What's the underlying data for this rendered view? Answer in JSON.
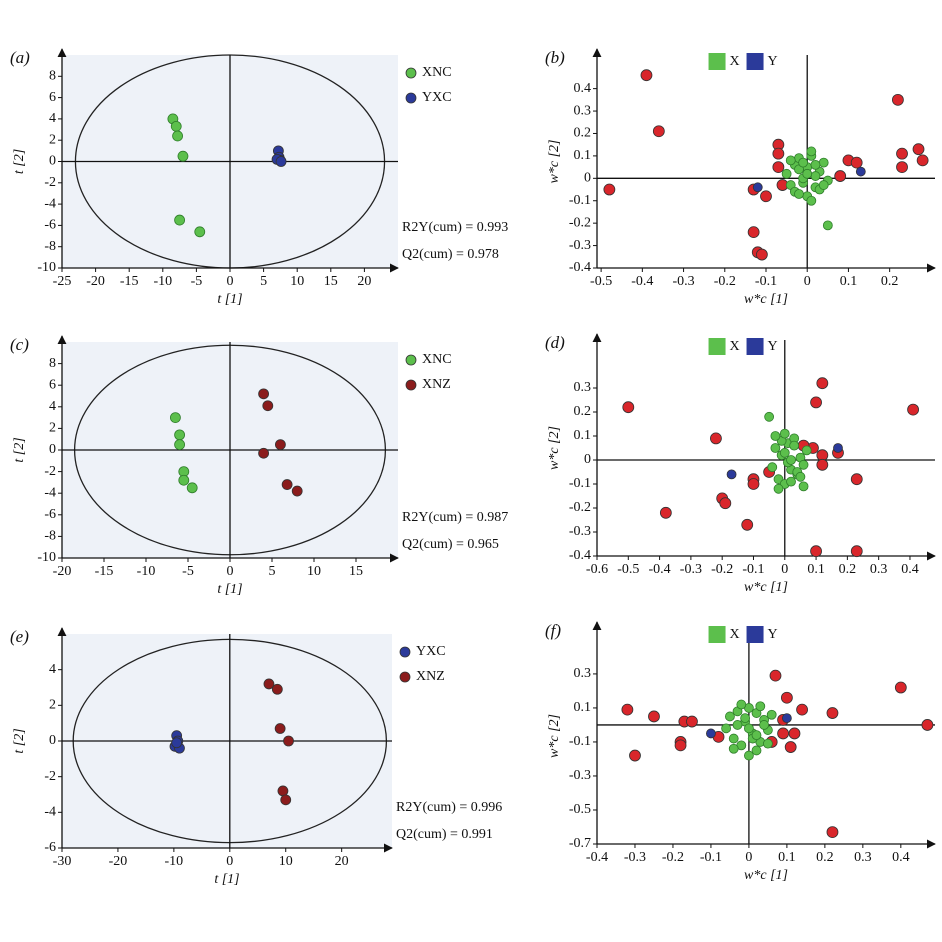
{
  "chart_data": [
    {
      "type": "scatter",
      "label": "(a)",
      "xlabel": "t [1]",
      "ylabel": "t [2]",
      "xlim": [
        -25,
        25
      ],
      "ylim": [
        -10,
        10
      ],
      "xticks": [
        -25,
        -20,
        -15,
        -10,
        -5,
        0,
        5,
        10,
        15,
        20
      ],
      "yticks": [
        -10,
        -8,
        -6,
        -4,
        -2,
        0,
        2,
        4,
        6,
        8
      ],
      "ellipse": [
        23,
        10
      ],
      "legend": "right",
      "background": "#eef2f8",
      "annotations": [
        "R2Y(cum) = 0.993",
        "Q2(cum) = 0.978"
      ],
      "series": [
        {
          "name": "XNC",
          "color": "#5cbf4c",
          "x": [
            -8.5,
            -8,
            -7.8,
            -7,
            -7.5,
            -4.5
          ],
          "values": [
            4,
            3.3,
            2.4,
            0.5,
            -5.5,
            -6.6
          ]
        },
        {
          "name": "YXC",
          "color": "#2b3a9a",
          "x": [
            7.2,
            7.3,
            7.5,
            7,
            7.6
          ],
          "values": [
            1,
            0.4,
            0.1,
            0.2,
            0
          ]
        }
      ]
    },
    {
      "type": "scatter",
      "label": "(b)",
      "xlabel": "w*c [1]",
      "ylabel": "w*c [2]",
      "xlim": [
        -0.51,
        0.31
      ],
      "ylim": [
        -0.4,
        0.55
      ],
      "xticks": [
        -0.5,
        -0.4,
        -0.3,
        -0.2,
        -0.1,
        0,
        0.1,
        0.2
      ],
      "yticks": [
        -0.4,
        -0.3,
        -0.2,
        -0.1,
        0,
        0.1,
        0.2,
        0.3,
        0.4
      ],
      "legend": "top",
      "series": [
        {
          "color": "#d9262b",
          "x": [
            -0.48,
            -0.39,
            -0.36,
            -0.13,
            -0.12,
            -0.11,
            -0.13,
            -0.1,
            -0.07,
            -0.07,
            -0.07,
            -0.06,
            0.1,
            0.12,
            0.08,
            0.22,
            0.23,
            0.23,
            0.27,
            0.28
          ],
          "values": [
            -0.05,
            0.46,
            0.21,
            -0.24,
            -0.33,
            -0.34,
            -0.05,
            -0.08,
            0.15,
            0.11,
            0.05,
            -0.03,
            0.08,
            0.07,
            0.01,
            0.35,
            0.11,
            0.05,
            0.13,
            0.08
          ]
        },
        {
          "name": "X",
          "color": "#5cbf4c",
          "x": [
            -0.05,
            -0.04,
            -0.03,
            -0.02,
            -0.01,
            0,
            0.01,
            0.02,
            0.03,
            0.04,
            0.05,
            -0.03,
            -0.01,
            0.01,
            0.03,
            0,
            -0.02,
            0.02,
            -0.04,
            0.04,
            0,
            0.01,
            -0.01,
            0.02,
            -0.02,
            0.05
          ],
          "values": [
            0.02,
            -0.03,
            0.06,
            0.09,
            -0.02,
            0.05,
            0.1,
            -0.04,
            0.03,
            0.07,
            -0.01,
            -0.06,
            0,
            0.12,
            -0.05,
            -0.08,
            0.04,
            0.01,
            0.08,
            -0.03,
            0.02,
            -0.1,
            0.07,
            0.06,
            -0.07,
            -0.21
          ]
        },
        {
          "name": "Y",
          "color": "#2b3a9a",
          "x": [
            -0.12,
            0.13
          ],
          "values": [
            -0.04,
            0.03
          ]
        }
      ]
    },
    {
      "type": "scatter",
      "label": "(c)",
      "xlabel": "t [1]",
      "ylabel": "t [2]",
      "xlim": [
        -20,
        20
      ],
      "ylim": [
        -10,
        10
      ],
      "xticks": [
        -20,
        -15,
        -10,
        -5,
        0,
        5,
        10,
        15
      ],
      "yticks": [
        -10,
        -8,
        -6,
        -4,
        -2,
        0,
        2,
        4,
        6,
        8
      ],
      "ellipse": [
        18.5,
        9.7
      ],
      "legend": "right",
      "background": "#eef2f8",
      "annotations": [
        "R2Y(cum) = 0.987",
        "Q2(cum) = 0.965"
      ],
      "series": [
        {
          "name": "XNC",
          "color": "#5cbf4c",
          "x": [
            -6.5,
            -6,
            -6,
            -5.5,
            -5.5,
            -4.5
          ],
          "values": [
            3,
            1.4,
            0.5,
            -2,
            -2.8,
            -3.5
          ]
        },
        {
          "name": "XNZ",
          "color": "#8b1c1c",
          "x": [
            4,
            4.5,
            6,
            4,
            6.8,
            8
          ],
          "values": [
            5.2,
            4.1,
            0.5,
            -0.3,
            -3.2,
            -3.8
          ]
        }
      ]
    },
    {
      "type": "scatter",
      "label": "(d)",
      "xlabel": "w*c [1]",
      "ylabel": "w*c [2]",
      "xlim": [
        -0.6,
        0.48
      ],
      "ylim": [
        -0.4,
        0.5
      ],
      "xticks": [
        -0.6,
        -0.5,
        -0.4,
        -0.3,
        -0.2,
        -0.1,
        0,
        0.1,
        0.2,
        0.3,
        0.4
      ],
      "yticks": [
        -0.4,
        -0.3,
        -0.2,
        -0.1,
        0,
        0.1,
        0.2,
        0.3
      ],
      "legend": "top",
      "series": [
        {
          "color": "#d9262b",
          "x": [
            -0.5,
            -0.38,
            -0.22,
            -0.2,
            -0.19,
            -0.12,
            -0.1,
            -0.1,
            -0.05,
            0.1,
            0.12,
            0.12,
            0.12,
            0.1,
            0.23,
            0.23,
            0.17,
            0.41,
            0.09,
            0.06
          ],
          "values": [
            0.22,
            -0.22,
            0.09,
            -0.16,
            -0.18,
            -0.27,
            -0.08,
            -0.1,
            -0.05,
            0.24,
            0.32,
            0.02,
            -0.02,
            -0.38,
            -0.38,
            -0.08,
            0.03,
            0.21,
            0.05,
            0.06
          ]
        },
        {
          "name": "X",
          "color": "#5cbf4c",
          "x": [
            -0.04,
            -0.03,
            -0.02,
            -0.01,
            0,
            0.01,
            0.02,
            0.03,
            0.04,
            0.05,
            0.06,
            0.07,
            -0.02,
            0,
            0.02,
            0.04,
            -0.01,
            0.01,
            0.03,
            0.05,
            0.02,
            0,
            -0.03,
            0.06,
            -0.05
          ],
          "values": [
            -0.03,
            0.05,
            -0.08,
            0.02,
            -0.1,
            0.07,
            -0.04,
            0.09,
            -0.06,
            0.01,
            -0.02,
            0.04,
            -0.12,
            0.03,
            -0.09,
            -0.05,
            0.08,
            -0.01,
            0.06,
            -0.07,
            0,
            0.11,
            0.1,
            -0.11,
            0.18
          ]
        },
        {
          "name": "Y",
          "color": "#2b3a9a",
          "x": [
            -0.17,
            0.17
          ],
          "values": [
            -0.06,
            0.05
          ]
        }
      ]
    },
    {
      "type": "scatter",
      "label": "(e)",
      "xlabel": "t [1]",
      "ylabel": "t [2]",
      "xlim": [
        -30,
        29
      ],
      "ylim": [
        -6,
        6
      ],
      "xticks": [
        -30,
        -20,
        -10,
        0,
        10,
        20
      ],
      "yticks": [
        -6,
        -4,
        -2,
        0,
        2,
        4
      ],
      "ellipse": [
        28,
        5.7
      ],
      "legend": "right",
      "background": "#eef2f8",
      "annotations": [
        "R2Y(cum) = 0.996",
        "Q2(cum) = 0.991"
      ],
      "series": [
        {
          "name": "YXC",
          "color": "#2b3a9a",
          "x": [
            -9.5,
            -9.3,
            -9.8,
            -9,
            -9.5
          ],
          "values": [
            0.3,
            0,
            -0.3,
            -0.4,
            -0.1
          ]
        },
        {
          "name": "XNZ",
          "color": "#8b1c1c",
          "x": [
            7,
            8.5,
            9,
            10.5,
            9.5,
            10
          ],
          "values": [
            3.2,
            2.9,
            0.7,
            0,
            -2.8,
            -3.3
          ]
        }
      ]
    },
    {
      "type": "scatter",
      "label": "(f)",
      "xlabel": "w*c [1]",
      "ylabel": "w*c [2]",
      "xlim": [
        -0.4,
        0.49
      ],
      "ylim": [
        -0.7,
        0.57
      ],
      "xticks": [
        -0.4,
        -0.3,
        -0.2,
        -0.1,
        0,
        0.1,
        0.2,
        0.3,
        0.4
      ],
      "yticks": [
        -0.7,
        -0.5,
        -0.3,
        -0.1,
        0.1,
        0.3
      ],
      "legend": "top",
      "series": [
        {
          "color": "#d9262b",
          "x": [
            -0.32,
            -0.3,
            -0.25,
            -0.18,
            -0.18,
            -0.17,
            -0.15,
            -0.08,
            0.07,
            0.1,
            0.09,
            0.09,
            0.11,
            0.12,
            0.14,
            0.22,
            0.22,
            0.4,
            0.47,
            0.06
          ],
          "values": [
            0.09,
            -0.18,
            0.05,
            -0.1,
            -0.12,
            0.02,
            0.02,
            -0.07,
            0.29,
            0.16,
            0.03,
            -0.05,
            -0.13,
            -0.05,
            0.09,
            0.07,
            -0.63,
            0.22,
            0,
            -0.1
          ]
        },
        {
          "name": "X",
          "color": "#5cbf4c",
          "x": [
            -0.06,
            -0.05,
            -0.04,
            -0.03,
            -0.02,
            -0.01,
            0,
            0.01,
            0.02,
            0.03,
            0.04,
            0.05,
            0.06,
            -0.04,
            -0.02,
            0,
            0.02,
            0.04,
            -0.03,
            0.01,
            0.03,
            -0.01,
            0.05,
            0,
            0.02
          ],
          "values": [
            -0.02,
            0.05,
            -0.08,
            0.08,
            -0.12,
            0.02,
            0.1,
            -0.05,
            0.07,
            -0.1,
            0.03,
            -0.03,
            0.06,
            -0.14,
            0.12,
            -0.18,
            -0.15,
            0,
            0,
            -0.08,
            0.11,
            0.04,
            -0.11,
            -0.02,
            -0.06
          ]
        },
        {
          "name": "Y",
          "color": "#2b3a9a",
          "x": [
            -0.1,
            0.1
          ],
          "values": [
            -0.05,
            0.04
          ]
        }
      ]
    }
  ]
}
